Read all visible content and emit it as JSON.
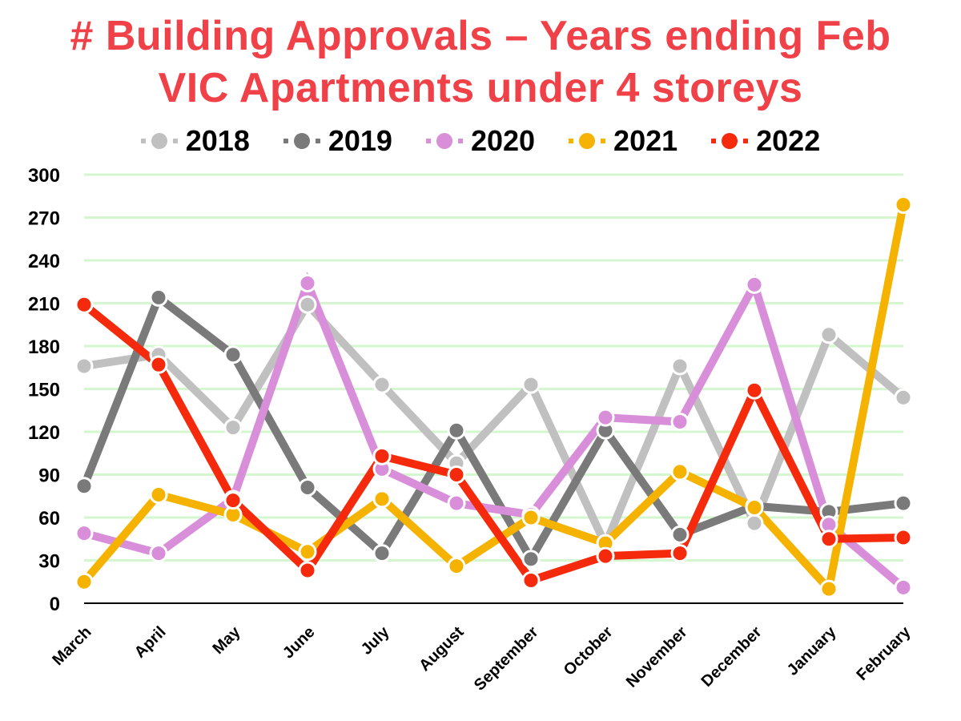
{
  "chart_data": {
    "type": "line",
    "title": "# Building Approvals – Years ending Feb",
    "subtitle": "VIC Apartments under 4 storeys",
    "xlabel": "",
    "ylabel": "",
    "ylim": [
      0,
      300
    ],
    "yticks": [
      0,
      30,
      60,
      90,
      120,
      150,
      180,
      210,
      240,
      270,
      300
    ],
    "grid": true,
    "legend_position": "top",
    "categories": [
      "March",
      "April",
      "May",
      "June",
      "July",
      "August",
      "September",
      "October",
      "November",
      "December",
      "January",
      "February"
    ],
    "series": [
      {
        "name": "2018",
        "color": "#c0c0c0",
        "values": [
          166,
          174,
          123,
          209,
          153,
          98,
          153,
          41,
          166,
          56,
          188,
          144
        ]
      },
      {
        "name": "2019",
        "color": "#7a7a7a",
        "values": [
          82,
          214,
          174,
          81,
          35,
          121,
          31,
          121,
          48,
          68,
          64,
          70
        ]
      },
      {
        "name": "2020",
        "color": "#d98ed9",
        "values": [
          49,
          35,
          73,
          224,
          94,
          70,
          62,
          130,
          127,
          223,
          55,
          11
        ]
      },
      {
        "name": "2021",
        "color": "#f5b300",
        "values": [
          15,
          76,
          62,
          36,
          73,
          26,
          60,
          42,
          92,
          67,
          10,
          279
        ]
      },
      {
        "name": "2022",
        "color": "#f52a0c",
        "values": [
          209,
          167,
          72,
          23,
          103,
          90,
          16,
          33,
          35,
          149,
          45,
          46
        ]
      }
    ],
    "colors": {
      "title": "#f04148",
      "grid": "#d4f7d0",
      "axis": "#000000"
    }
  }
}
